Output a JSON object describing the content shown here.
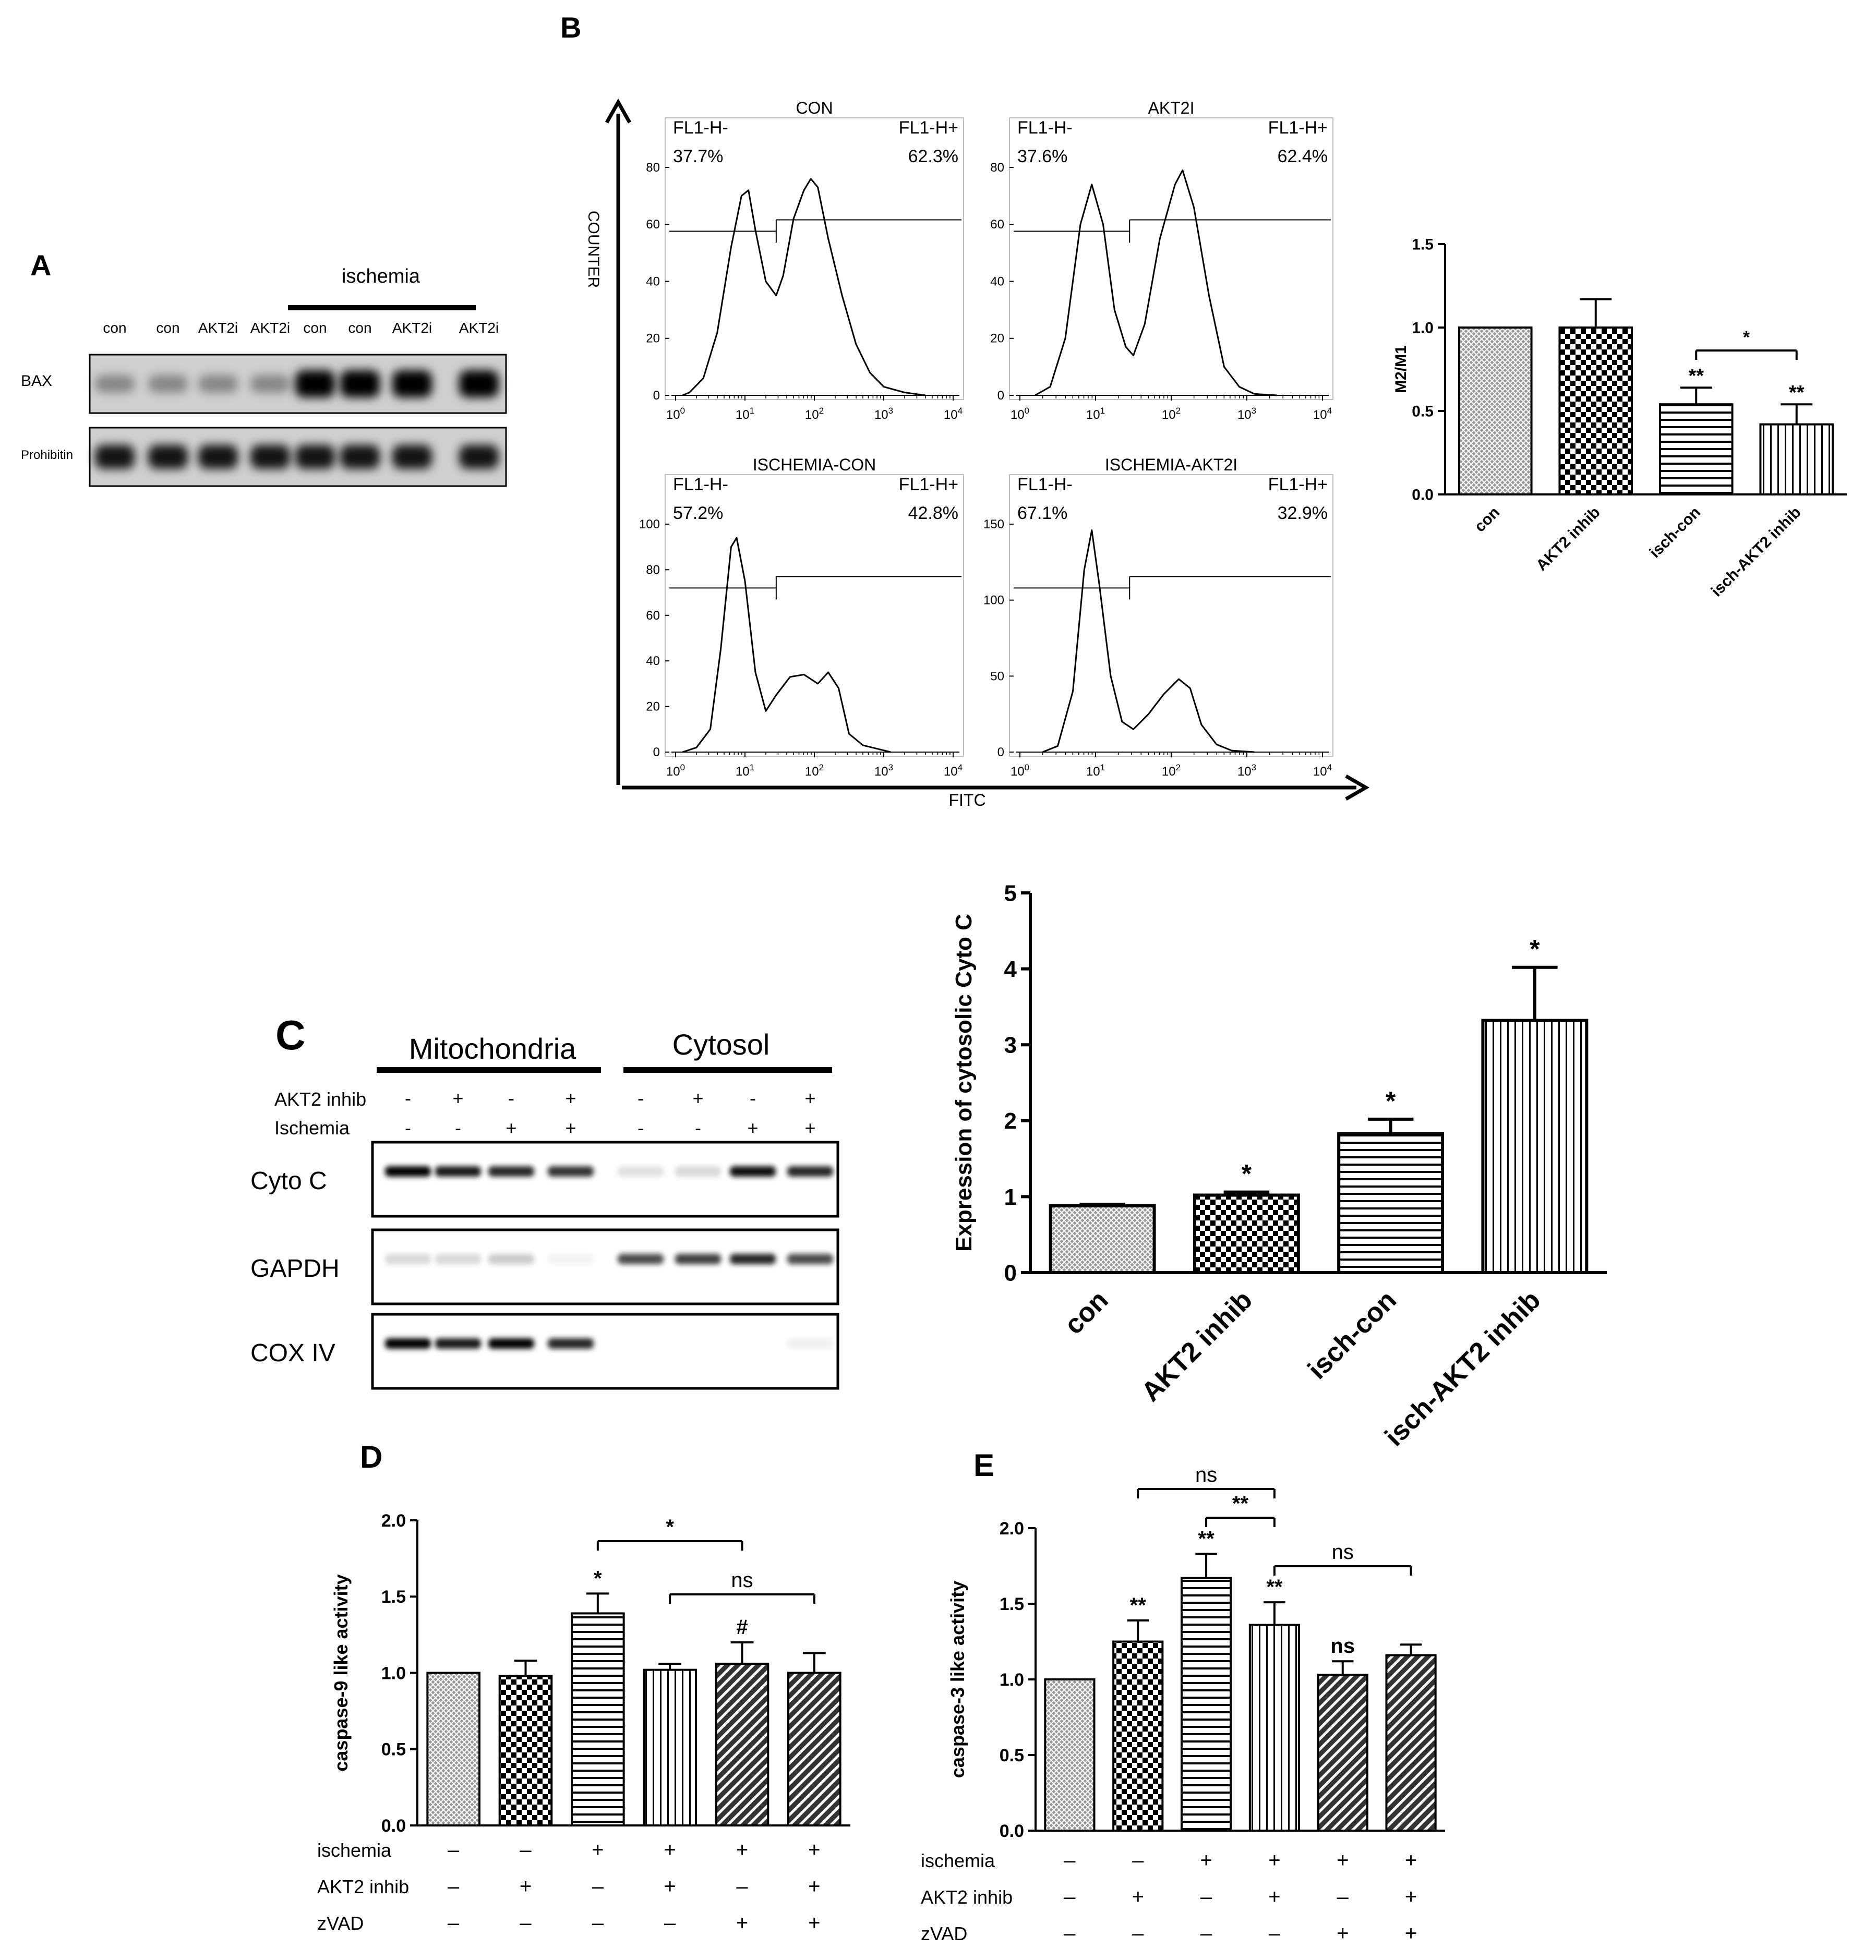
{
  "panel_letters": {
    "a": "A",
    "b": "B",
    "c": "C",
    "d": "D",
    "e": "E"
  },
  "colors": {
    "ink": "#000000",
    "bar_edge": "#000000",
    "bar_light": "#cfcfcf",
    "background": "#ffffff"
  },
  "panel_a": {
    "header": "ischemia",
    "lanes": [
      "con",
      "con",
      "AKT2i",
      "AKT2i",
      "con",
      "con",
      "AKT2i",
      "AKT2i"
    ],
    "rows": [
      "BAX",
      "Prohibitin"
    ]
  },
  "panel_c_blot": {
    "groups": [
      "Mitochondria",
      "Cytosol"
    ],
    "condition_labels": [
      "AKT2 inhib",
      "Ischemia"
    ],
    "akt2_signs": [
      "-",
      "+",
      "-",
      "+",
      "-",
      "+",
      "-",
      "+"
    ],
    "ischemia_signs": [
      "-",
      "-",
      "+",
      "+",
      "-",
      "-",
      "+",
      "+"
    ],
    "rows": [
      "Cyto C",
      "GAPDH",
      "COX IV"
    ]
  },
  "chart_data": [
    {
      "id": "B-histograms",
      "type": "histogram",
      "xlabel": "FITC",
      "ylabel": "COUNTER",
      "xtick_labels": [
        "10^0",
        "10^1",
        "10^2",
        "10^3",
        "10^4"
      ],
      "subplots": [
        {
          "title": "CON",
          "left_gate": "FL1-H-",
          "left_pct": "37.7%",
          "right_gate": "FL1-H+",
          "right_pct": "62.3%",
          "ylim": [
            0,
            80
          ],
          "yticks": [
            0,
            20,
            40,
            60,
            80
          ],
          "curve": [
            [
              0.1,
              0
            ],
            [
              0.2,
              1
            ],
            [
              0.4,
              6
            ],
            [
              0.6,
              22
            ],
            [
              0.8,
              52
            ],
            [
              0.95,
              70
            ],
            [
              1.05,
              72
            ],
            [
              1.15,
              58
            ],
            [
              1.3,
              40
            ],
            [
              1.45,
              35
            ],
            [
              1.55,
              42
            ],
            [
              1.7,
              62
            ],
            [
              1.85,
              72
            ],
            [
              1.95,
              76
            ],
            [
              2.05,
              73
            ],
            [
              2.2,
              55
            ],
            [
              2.4,
              35
            ],
            [
              2.6,
              18
            ],
            [
              2.8,
              8
            ],
            [
              3.0,
              3
            ],
            [
              3.3,
              1
            ],
            [
              3.6,
              0
            ]
          ]
        },
        {
          "title": "AKT2I",
          "left_gate": "FL1-H-",
          "left_pct": "37.6%",
          "right_gate": "FL1-H+",
          "right_pct": "62.4%",
          "ylim": [
            0,
            80
          ],
          "yticks": [
            0,
            20,
            40,
            60,
            80
          ],
          "curve": [
            [
              0.2,
              0
            ],
            [
              0.4,
              3
            ],
            [
              0.6,
              20
            ],
            [
              0.8,
              60
            ],
            [
              0.95,
              74
            ],
            [
              1.1,
              60
            ],
            [
              1.25,
              30
            ],
            [
              1.4,
              17
            ],
            [
              1.5,
              14
            ],
            [
              1.65,
              25
            ],
            [
              1.85,
              55
            ],
            [
              2.05,
              74
            ],
            [
              2.15,
              79
            ],
            [
              2.3,
              66
            ],
            [
              2.5,
              35
            ],
            [
              2.7,
              10
            ],
            [
              2.9,
              3
            ],
            [
              3.1,
              0.5
            ],
            [
              3.4,
              0
            ]
          ]
        },
        {
          "title": "ISCHEMIA-CON",
          "left_gate": "FL1-H-",
          "left_pct": "57.2%",
          "right_gate": "FL1-H+",
          "right_pct": "42.8%",
          "ylim": [
            0,
            100
          ],
          "yticks": [
            0,
            20,
            40,
            60,
            80,
            100
          ],
          "curve": [
            [
              0.1,
              0
            ],
            [
              0.3,
              2
            ],
            [
              0.5,
              10
            ],
            [
              0.65,
              45
            ],
            [
              0.8,
              90
            ],
            [
              0.88,
              94
            ],
            [
              1.0,
              75
            ],
            [
              1.15,
              35
            ],
            [
              1.3,
              18
            ],
            [
              1.45,
              25
            ],
            [
              1.65,
              33
            ],
            [
              1.85,
              34
            ],
            [
              2.05,
              30
            ],
            [
              2.2,
              35
            ],
            [
              2.35,
              28
            ],
            [
              2.5,
              8
            ],
            [
              2.7,
              3
            ],
            [
              2.9,
              1.5
            ],
            [
              3.1,
              0
            ]
          ]
        },
        {
          "title": "ISCHEMIA-AKT2I",
          "left_gate": "FL1-H-",
          "left_pct": "67.1%",
          "right_gate": "FL1-H+",
          "right_pct": "32.9%",
          "ylim": [
            0,
            150
          ],
          "yticks": [
            0,
            50,
            100,
            150
          ],
          "curve": [
            [
              0.3,
              0
            ],
            [
              0.5,
              4
            ],
            [
              0.7,
              40
            ],
            [
              0.85,
              120
            ],
            [
              0.95,
              146
            ],
            [
              1.05,
              110
            ],
            [
              1.2,
              50
            ],
            [
              1.35,
              20
            ],
            [
              1.5,
              15
            ],
            [
              1.7,
              25
            ],
            [
              1.9,
              38
            ],
            [
              2.1,
              48
            ],
            [
              2.25,
              42
            ],
            [
              2.4,
              18
            ],
            [
              2.6,
              5
            ],
            [
              2.8,
              1
            ],
            [
              3.1,
              0
            ]
          ]
        }
      ]
    },
    {
      "id": "B-bar",
      "type": "bar",
      "ylabel": "M2/M1",
      "categories": [
        "con",
        "AKT2 inhib",
        "isch-con",
        "isch-AKT2 inhib"
      ],
      "values": [
        1.0,
        1.0,
        0.54,
        0.42
      ],
      "errors": [
        0.0,
        0.17,
        0.1,
        0.12
      ],
      "patterns": [
        "cross",
        "checker",
        "hlines",
        "vlines"
      ],
      "ylim": [
        0,
        1.5
      ],
      "yticks": [
        "0.0",
        "0.5",
        "1.0",
        "1.5"
      ],
      "marks": [
        "",
        "",
        "**",
        "**"
      ],
      "brackets": [
        {
          "from": 2,
          "to": 3,
          "label": "*"
        }
      ]
    },
    {
      "id": "C-bar",
      "type": "bar",
      "ylabel": "Expression of cytosolic Cyto C",
      "categories": [
        "con",
        "AKT2 inhib",
        "isch-con",
        "isch-AKT2 inhib"
      ],
      "values": [
        0.88,
        1.02,
        1.83,
        3.32
      ],
      "errors": [
        0.02,
        0.04,
        0.19,
        0.7
      ],
      "patterns": [
        "cross",
        "checker",
        "hlines",
        "vlines"
      ],
      "ylim": [
        0,
        5
      ],
      "yticks": [
        "0",
        "1",
        "2",
        "3",
        "4",
        "5"
      ],
      "marks": [
        "",
        "*",
        "*",
        "*"
      ]
    },
    {
      "id": "D-bar",
      "type": "bar",
      "ylabel": "caspase-9 like activity",
      "values": [
        1.0,
        0.98,
        1.39,
        1.02,
        1.06,
        1.0
      ],
      "errors": [
        0.0,
        0.1,
        0.13,
        0.04,
        0.14,
        0.13
      ],
      "patterns": [
        "cross",
        "checker",
        "hlines",
        "vlines",
        "diagonal",
        "diagonal"
      ],
      "ylim": [
        0,
        2.0
      ],
      "yticks": [
        "0.0",
        "0.5",
        "1.0",
        "1.5",
        "2.0"
      ],
      "marks": [
        "",
        "",
        "*",
        "",
        "#",
        ""
      ],
      "brackets": [
        {
          "from": 2,
          "to": 4,
          "label": "*"
        },
        {
          "from": 3,
          "to": 5,
          "label": "ns"
        }
      ],
      "conditions": [
        {
          "name": "ischemia",
          "signs": [
            "–",
            "–",
            "+",
            "+",
            "+",
            "+"
          ]
        },
        {
          "name": "AKT2 inhib",
          "signs": [
            "–",
            "+",
            "–",
            "+",
            "–",
            "+"
          ]
        },
        {
          "name": "zVAD",
          "signs": [
            "–",
            "–",
            "–",
            "–",
            "+",
            "+"
          ]
        }
      ]
    },
    {
      "id": "E-bar",
      "type": "bar",
      "ylabel": "caspase-3 like activity",
      "values": [
        1.0,
        1.25,
        1.67,
        1.36,
        1.03,
        1.16
      ],
      "errors": [
        0.0,
        0.14,
        0.16,
        0.15,
        0.09,
        0.07
      ],
      "patterns": [
        "cross",
        "checker",
        "hlines",
        "vlines",
        "diagonal",
        "diagonal"
      ],
      "ylim": [
        0,
        2.0
      ],
      "yticks": [
        "0.0",
        "0.5",
        "1.0",
        "1.5",
        "2.0"
      ],
      "marks": [
        "",
        "**",
        "**",
        "**",
        "ns",
        ""
      ],
      "brackets": [
        {
          "from": 1,
          "to": 3,
          "label": "ns"
        },
        {
          "from": 2,
          "to": 3,
          "label": "**"
        },
        {
          "from": 3,
          "to": 5,
          "label": "ns"
        }
      ],
      "conditions": [
        {
          "name": "ischemia",
          "signs": [
            "–",
            "–",
            "+",
            "+",
            "+",
            "+"
          ]
        },
        {
          "name": "AKT2 inhib",
          "signs": [
            "–",
            "+",
            "–",
            "+",
            "–",
            "+"
          ]
        },
        {
          "name": "zVAD",
          "signs": [
            "–",
            "–",
            "–",
            "–",
            "+",
            "+"
          ]
        }
      ]
    }
  ]
}
